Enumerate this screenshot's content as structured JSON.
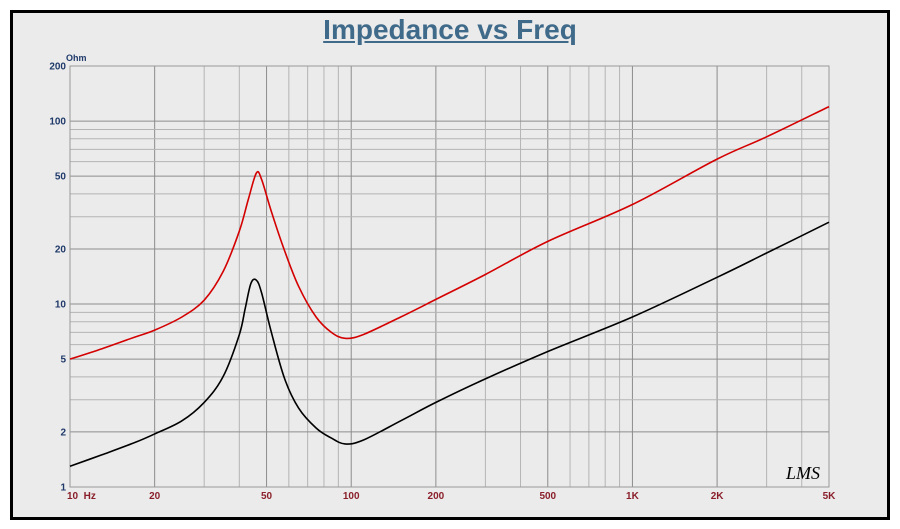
{
  "chart_data": {
    "type": "line",
    "title": "Impedance vs Freq",
    "ylabel": "Ohm",
    "xlabel": "",
    "x_scale": "log",
    "y_scale": "log",
    "xlim": [
      10,
      5000
    ],
    "ylim": [
      1,
      200
    ],
    "x_tick_values": [
      10,
      20,
      50,
      100,
      200,
      500,
      1000,
      2000,
      5000
    ],
    "x_tick_labels": [
      "10  Hz",
      "20",
      "50",
      "100",
      "200",
      "500",
      "1K",
      "2K",
      "5K"
    ],
    "y_tick_values": [
      1,
      2,
      5,
      10,
      20,
      50,
      100,
      200
    ],
    "y_tick_labels": [
      "1",
      "2",
      "5",
      "10",
      "20",
      "50",
      "100",
      "200"
    ],
    "grid": true,
    "annotation": "LMS",
    "series": [
      {
        "color": "#d40000",
        "x": [
          10,
          13,
          17,
          20,
          25,
          30,
          35,
          40,
          43,
          46,
          48,
          52,
          58,
          65,
          75,
          85,
          95,
          110,
          150,
          200,
          300,
          500,
          1000,
          2000,
          3000,
          5000
        ],
        "y": [
          5.0,
          5.7,
          6.6,
          7.2,
          8.5,
          10.5,
          15,
          25,
          37,
          52,
          48,
          32,
          19.5,
          12.5,
          8.5,
          7.0,
          6.5,
          6.8,
          8.5,
          10.6,
          14.5,
          22,
          35,
          62,
          82,
          120
        ]
      },
      {
        "color": "#000000",
        "x": [
          10,
          13,
          17,
          20,
          25,
          30,
          35,
          40,
          42,
          44,
          46,
          48,
          52,
          58,
          65,
          75,
          85,
          95,
          110,
          150,
          200,
          300,
          500,
          1000,
          2000,
          3000,
          5000
        ],
        "y": [
          1.3,
          1.5,
          1.75,
          1.95,
          2.3,
          2.9,
          4.0,
          6.8,
          9.5,
          13.0,
          13.5,
          11.5,
          7.0,
          3.9,
          2.7,
          2.1,
          1.85,
          1.72,
          1.8,
          2.3,
          2.9,
          3.9,
          5.5,
          8.5,
          14,
          19,
          28
        ]
      }
    ]
  }
}
